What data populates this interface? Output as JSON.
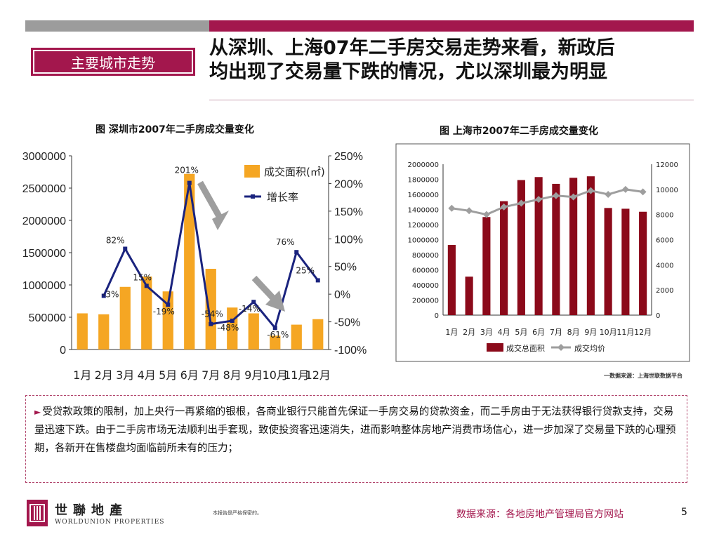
{
  "colors": {
    "accent": "#a3174d",
    "bar_gray": "#9c9c9c",
    "sz_bar": "#f5a623",
    "sz_line": "#1a237e",
    "sh_bar": "#8b0a1a",
    "sh_line": "#9e9e9e"
  },
  "header": {
    "section_tag": "主要城市走势",
    "headline_line1": "从深圳、上海07年二手房交易走势来看，新政后",
    "headline_line2": "均出现了交易量下跌的情况，尤以深圳最为明显"
  },
  "charts": {
    "left_title": "图 深圳市2007年二手房成交量变化",
    "right_title": "图 上海市2007年二手房成交量变化",
    "right_source": "一数据来源：上海世联数据平台"
  },
  "chart_data": [
    {
      "type": "bar",
      "categories": [
        "1月",
        "2月",
        "3月",
        "4月",
        "5月",
        "6月",
        "7月",
        "8月",
        "9月",
        "10月",
        "11月",
        "12月"
      ],
      "y_ticks": [
        "3000000",
        "2500000",
        "2000000",
        "1500000",
        "1000000",
        "500000",
        "0"
      ],
      "y2_ticks": [
        "250%",
        "200%",
        "150%",
        "100%",
        "50%",
        "0%",
        "-50%",
        "-100%"
      ],
      "ylim": [
        0,
        3000000
      ],
      "y2lim": [
        -100,
        250
      ],
      "series": [
        {
          "name": "成交面积(㎡)",
          "kind": "bar",
          "values": [
            560000,
            545000,
            970000,
            1130000,
            900000,
            2720000,
            1250000,
            650000,
            560000,
            215000,
            385000,
            470000
          ]
        },
        {
          "name": "增长率",
          "kind": "line",
          "values": [
            null,
            -3,
            82,
            15,
            -19,
            201,
            -54,
            -48,
            -14,
            -61,
            76,
            25
          ]
        }
      ],
      "point_labels": [
        "",
        "-3%",
        "82%",
        "15%",
        "-19%",
        "201%",
        "-54%",
        "-48%",
        "-14%",
        "-61%",
        "76%",
        "25%"
      ]
    },
    {
      "type": "bar",
      "categories": [
        "1月",
        "2月",
        "3月",
        "4月",
        "5月",
        "6月",
        "7月",
        "8月",
        "9月",
        "10月",
        "11月",
        "12月"
      ],
      "y_ticks": [
        "2000000",
        "1800000",
        "1600000",
        "1400000",
        "1200000",
        "1000000",
        "800000",
        "600000",
        "400000",
        "200000",
        "0"
      ],
      "y2_ticks": [
        "12000",
        "10000",
        "8000",
        "6000",
        "4000",
        "2000",
        "0"
      ],
      "ylim": [
        0,
        2000000
      ],
      "y2lim": [
        0,
        12000
      ],
      "series": [
        {
          "name": "成交总面积",
          "kind": "bar",
          "values": [
            930000,
            510000,
            1300000,
            1510000,
            1790000,
            1830000,
            1740000,
            1820000,
            1840000,
            1420000,
            1410000,
            1370000
          ]
        },
        {
          "name": "成交均价",
          "kind": "line",
          "values": [
            8500,
            8300,
            8000,
            8600,
            8900,
            9200,
            9500,
            9400,
            9900,
            9600,
            10000,
            9800
          ]
        }
      ]
    }
  ],
  "body": {
    "paragraph": "受贷款政策的限制，加上央行一再紧缩的银根，各商业银行只能首先保证一手房交易的贷款资金，而二手房由于无法获得银行贷款支持，交易量迅速下跌。由于二手房市场无法顺利出手套现，致使投资客迅速消失，进而影响整体房地产消费市场信心，进一步加深了交易量下跌的心理预期，各新开在售楼盘均面临前所未有的压力；"
  },
  "footer": {
    "logo_cn": "世聯地產",
    "logo_en": "WORLDUNION PROPERTIES",
    "disclaimer": "本报告是严格保密的。",
    "source": "数据来源：各地房地产管理局官方网站",
    "page": "5"
  }
}
